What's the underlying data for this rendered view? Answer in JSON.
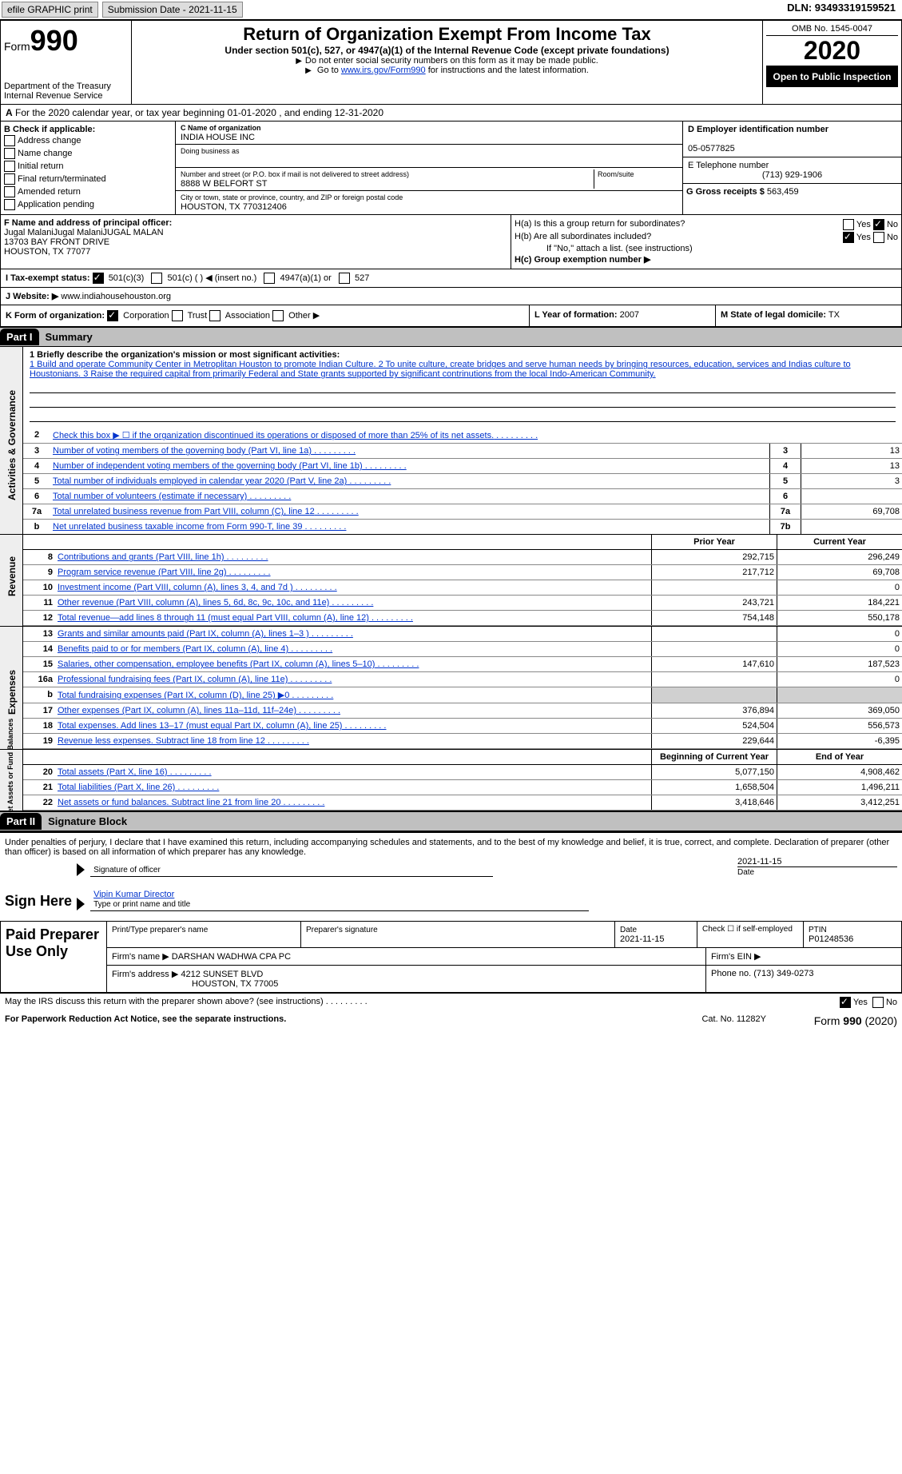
{
  "top": {
    "efile": "efile GRAPHIC print",
    "submission": "Submission Date - 2021-11-15",
    "dln": "DLN: 93493319159521"
  },
  "header": {
    "form": "Form",
    "form_no": "990",
    "dept": "Department of the Treasury\nInternal Revenue Service",
    "title": "Return of Organization Exempt From Income Tax",
    "subtitle": "Under section 501(c), 527, or 4947(a)(1) of the Internal Revenue Code (except private foundations)",
    "note1": "Do not enter social security numbers on this form as it may be made public.",
    "note2_pre": "Go to ",
    "note2_link": "www.irs.gov/Form990",
    "note2_post": " for instructions and the latest information.",
    "omb": "OMB No. 1545-0047",
    "year": "2020",
    "open": "Open to Public Inspection"
  },
  "row_a": "For the 2020 calendar year, or tax year beginning 01-01-2020   , and ending 12-31-2020",
  "box_b": {
    "title": "B Check if applicable:",
    "items": [
      "Address change",
      "Name change",
      "Initial return",
      "Final return/terminated",
      "Amended return",
      "Application pending"
    ]
  },
  "box_c": {
    "label_name": "C Name of organization",
    "org": "INDIA HOUSE INC",
    "dba_label": "Doing business as",
    "addr_label": "Number and street (or P.O. box if mail is not delivered to street address)",
    "room": "Room/suite",
    "street": "8888 W BELFORT ST",
    "city_label": "City or town, state or province, country, and ZIP or foreign postal code",
    "city": "HOUSTON, TX  770312406"
  },
  "box_d": {
    "ein_label": "D Employer identification number",
    "ein": "05-0577825",
    "tel_label": "E Telephone number",
    "tel": "(713) 929-1906",
    "gross_label": "G Gross receipts $",
    "gross": "563,459"
  },
  "box_f": {
    "label": "F Name and address of principal officer:",
    "name": "Jugal MalaniJugal MalaniJUGAL MALAN",
    "addr1": "13703 BAY FRONT DRIVE",
    "addr2": "HOUSTON, TX  77077"
  },
  "box_h": {
    "ha": "H(a)  Is this a group return for subordinates?",
    "hb": "H(b)  Are all subordinates included?",
    "hb_note": "If \"No,\" attach a list. (see instructions)",
    "hc": "H(c)  Group exemption number ▶"
  },
  "row_i": {
    "label": "I    Tax-exempt status:",
    "opts": [
      "501(c)(3)",
      "501(c) (  ) ◀ (insert no.)",
      "4947(a)(1) or",
      "527"
    ]
  },
  "row_j": {
    "label": "J   Website: ▶",
    "val": "www.indiahousehouston.org"
  },
  "row_k": {
    "label": "K Form of organization:",
    "opts": [
      "Corporation",
      "Trust",
      "Association",
      "Other ▶"
    ]
  },
  "row_l": {
    "label": "L Year of formation:",
    "val": "2007"
  },
  "row_m": {
    "label": "M State of legal domicile:",
    "val": "TX"
  },
  "parts": {
    "p1": "Part I",
    "p1t": "Summary",
    "p2": "Part II",
    "p2t": "Signature Block"
  },
  "mission": {
    "label": "1  Briefly describe the organization's mission or most significant activities:",
    "text": "1 Build and operate Community Center in Metroplitan Houston to promote Indian Culture. 2 To unite culture, create bridges and serve human needs by bringing resources, education, services and Indias culture to Houstonians. 3 Raise the required capital from primarily Federal and State grants supported by significant contrinutions from the local Indo-American Community."
  },
  "gov_lines": [
    {
      "n": "2",
      "t": "Check this box ▶ ☐ if the organization discontinued its operations or disposed of more than 25% of its net assets.",
      "box": "",
      "v": ""
    },
    {
      "n": "3",
      "t": "Number of voting members of the governing body (Part VI, line 1a)",
      "box": "3",
      "v": "13"
    },
    {
      "n": "4",
      "t": "Number of independent voting members of the governing body (Part VI, line 1b)",
      "box": "4",
      "v": "13"
    },
    {
      "n": "5",
      "t": "Total number of individuals employed in calendar year 2020 (Part V, line 2a)",
      "box": "5",
      "v": "3"
    },
    {
      "n": "6",
      "t": "Total number of volunteers (estimate if necessary)",
      "box": "6",
      "v": ""
    },
    {
      "n": "7a",
      "t": "Total unrelated business revenue from Part VIII, column (C), line 12",
      "box": "7a",
      "v": "69,708"
    },
    {
      "n": "b",
      "t": "Net unrelated business taxable income from Form 990-T, line 39",
      "box": "7b",
      "v": ""
    }
  ],
  "col_hdr": {
    "c1": "Prior Year",
    "c2": "Current Year"
  },
  "revenue": [
    {
      "n": "8",
      "t": "Contributions and grants (Part VIII, line 1h)",
      "v1": "292,715",
      "v2": "296,249"
    },
    {
      "n": "9",
      "t": "Program service revenue (Part VIII, line 2g)",
      "v1": "217,712",
      "v2": "69,708"
    },
    {
      "n": "10",
      "t": "Investment income (Part VIII, column (A), lines 3, 4, and 7d )",
      "v1": "",
      "v2": "0"
    },
    {
      "n": "11",
      "t": "Other revenue (Part VIII, column (A), lines 5, 6d, 8c, 9c, 10c, and 11e)",
      "v1": "243,721",
      "v2": "184,221"
    },
    {
      "n": "12",
      "t": "Total revenue—add lines 8 through 11 (must equal Part VIII, column (A), line 12)",
      "v1": "754,148",
      "v2": "550,178"
    }
  ],
  "expenses": [
    {
      "n": "13",
      "t": "Grants and similar amounts paid (Part IX, column (A), lines 1–3 )",
      "v1": "",
      "v2": "0"
    },
    {
      "n": "14",
      "t": "Benefits paid to or for members (Part IX, column (A), line 4)",
      "v1": "",
      "v2": "0"
    },
    {
      "n": "15",
      "t": "Salaries, other compensation, employee benefits (Part IX, column (A), lines 5–10)",
      "v1": "147,610",
      "v2": "187,523"
    },
    {
      "n": "16a",
      "t": "Professional fundraising fees (Part IX, column (A), line 11e)",
      "v1": "",
      "v2": "0"
    },
    {
      "n": "b",
      "t": "Total fundraising expenses (Part IX, column (D), line 25) ▶0",
      "v1": "—shade—",
      "v2": "—shade—"
    },
    {
      "n": "17",
      "t": "Other expenses (Part IX, column (A), lines 11a–11d, 11f–24e)",
      "v1": "376,894",
      "v2": "369,050"
    },
    {
      "n": "18",
      "t": "Total expenses. Add lines 13–17 (must equal Part IX, column (A), line 25)",
      "v1": "524,504",
      "v2": "556,573"
    },
    {
      "n": "19",
      "t": "Revenue less expenses. Subtract line 18 from line 12",
      "v1": "229,644",
      "v2": "-6,395"
    }
  ],
  "na_hdr": {
    "c1": "Beginning of Current Year",
    "c2": "End of Year"
  },
  "netassets": [
    {
      "n": "20",
      "t": "Total assets (Part X, line 16)",
      "v1": "5,077,150",
      "v2": "4,908,462"
    },
    {
      "n": "21",
      "t": "Total liabilities (Part X, line 26)",
      "v1": "1,658,504",
      "v2": "1,496,211"
    },
    {
      "n": "22",
      "t": "Net assets or fund balances. Subtract line 21 from line 20",
      "v1": "3,418,646",
      "v2": "3,412,251"
    }
  ],
  "vtabs": {
    "gov": "Activities & Governance",
    "rev": "Revenue",
    "exp": "Expenses",
    "na": "Net Assets or Fund Balances"
  },
  "sig": {
    "decl": "Under penalties of perjury, I declare that I have examined this return, including accompanying schedules and statements, and to the best of my knowledge and belief, it is true, correct, and complete. Declaration of preparer (other than officer) is based on all information of which preparer has any knowledge.",
    "sign_here": "Sign Here",
    "sig_officer": "Signature of officer",
    "date": "Date",
    "date_val": "2021-11-15",
    "name": "Vipin Kumar  Director",
    "name_label": "Type or print name and title"
  },
  "prep": {
    "title": "Paid Preparer Use Only",
    "h1": "Print/Type preparer's name",
    "h2": "Preparer's signature",
    "h3": "Date",
    "h3v": "2021-11-15",
    "h4": "Check ☐ if self-employed",
    "h5": "PTIN",
    "ptin": "P01248536",
    "firm_label": "Firm's name    ▶",
    "firm": "DARSHAN WADHWA CPA PC",
    "ein_label": "Firm's EIN ▶",
    "addr_label": "Firm's address ▶",
    "addr1": "4212 SUNSET BLVD",
    "addr2": "HOUSTON, TX  77005",
    "phone_label": "Phone no.",
    "phone": "(713) 349-0273"
  },
  "footer": {
    "q": "May the IRS discuss this return with the preparer shown above? (see instructions)",
    "paperwork": "For Paperwork Reduction Act Notice, see the separate instructions.",
    "cat": "Cat. No. 11282Y",
    "form": "Form 990 (2020)"
  }
}
